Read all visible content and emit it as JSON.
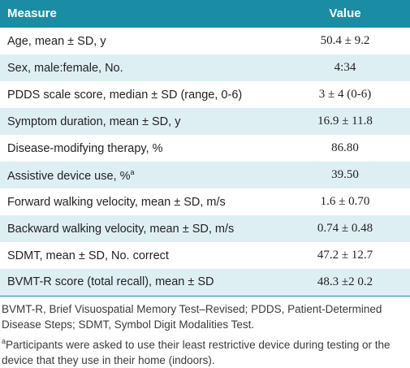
{
  "table": {
    "headers": {
      "measure": "Measure",
      "value": "Value"
    },
    "rows": [
      {
        "measure": "Age, mean ± SD, y",
        "sup": "",
        "value": "50.4 ± 9.2"
      },
      {
        "measure": "Sex, male:female, No.",
        "sup": "",
        "value": "4:34"
      },
      {
        "measure": "PDDS scale score, median ± SD (range, 0-6)",
        "sup": "",
        "value": "3 ± 4 (0-6)"
      },
      {
        "measure": "Symptom duration, mean ± SD, y",
        "sup": "",
        "value": "16.9 ± 11.8"
      },
      {
        "measure": "Disease-modifying therapy, %",
        "sup": "",
        "value": "86.80"
      },
      {
        "measure": "Assistive device use, %",
        "sup": "a",
        "value": "39.50"
      },
      {
        "measure": "Forward walking velocity, mean ± SD, m/s",
        "sup": "",
        "value": "1.6 ± 0.70"
      },
      {
        "measure": "Backward walking velocity, mean ± SD, m/s",
        "sup": "",
        "value": "0.74 ± 0.48"
      },
      {
        "measure": "SDMT, mean ± SD, No. correct",
        "sup": "",
        "value": "47.2 ± 12.7"
      },
      {
        "measure": "BVMT-R score (total recall), mean ± SD",
        "sup": "",
        "value": "48.3 ±2 0.2"
      }
    ]
  },
  "notes": {
    "abbreviations": "BVMT-R, Brief Visuospatial Memory Test–Revised; PDDS, Patient-Determined Disease Steps; SDMT, Symbol Digit Modalities Test.",
    "footnote_marker": "a",
    "footnote_text": "Participants were asked to use their least restrictive device during testing or the device that they use in their home (indoors)."
  },
  "colors": {
    "header_bg": "#1a8da5",
    "stripe_bg": "#ddeff3"
  }
}
